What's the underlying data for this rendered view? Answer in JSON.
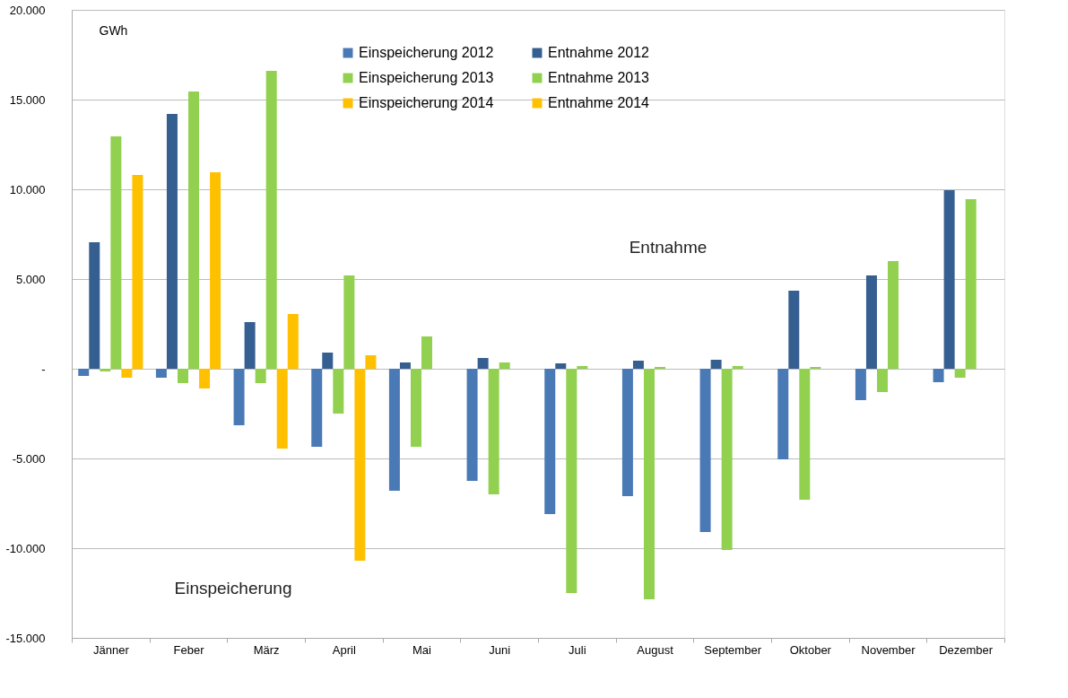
{
  "chart_data": {
    "type": "bar",
    "ylabel": "GWh",
    "categories": [
      "Jänner",
      "Feber",
      "März",
      "April",
      "Mai",
      "Juni",
      "Juli",
      "August",
      "September",
      "Oktober",
      "November",
      "Dezember"
    ],
    "series": [
      {
        "name": "Einspeicherung 2012",
        "color": "#4a7ab5",
        "values": [
          -400,
          -500,
          -3150,
          -4350,
          -6800,
          -6250,
          -8100,
          -7100,
          -9100,
          -5050,
          -1750,
          -750
        ]
      },
      {
        "name": "Entnahme 2012",
        "color": "#365f91",
        "values": [
          7050,
          14200,
          2600,
          900,
          350,
          600,
          300,
          450,
          500,
          4350,
          5200,
          9950
        ]
      },
      {
        "name": "Einspeicherung 2013",
        "color": "#92d050",
        "values": [
          -150,
          -800,
          -800,
          -2500,
          -4350,
          -7000,
          -12500,
          -12850,
          -10100,
          -7300,
          -1300,
          -500
        ]
      },
      {
        "name": "Entnahme 2013",
        "color": "#92d050",
        "values": [
          12950,
          15450,
          16600,
          5200,
          1800,
          350,
          150,
          100,
          150,
          100,
          6000,
          9450
        ]
      },
      {
        "name": "Einspeicherung 2014",
        "color": "#ffc000",
        "values": [
          -500,
          -1100,
          -4450,
          -10700,
          null,
          null,
          null,
          null,
          null,
          null,
          null,
          null
        ]
      },
      {
        "name": "Entnahme 2014",
        "color": "#ffc000",
        "values": [
          10800,
          10950,
          3050,
          750,
          null,
          null,
          null,
          null,
          null,
          null,
          null,
          null
        ]
      }
    ],
    "ylim": [
      -15000,
      20000
    ],
    "yticks": [
      {
        "value": -15000,
        "label": "-15.000"
      },
      {
        "value": -10000,
        "label": "-10.000"
      },
      {
        "value": -5000,
        "label": "-5.000"
      },
      {
        "value": 0,
        "label": "-"
      },
      {
        "value": 5000,
        "label": "5.000"
      },
      {
        "value": 10000,
        "label": "10.000"
      },
      {
        "value": 15000,
        "label": "15.000"
      },
      {
        "value": 20000,
        "label": "20.000"
      }
    ],
    "grid": "y",
    "legend": "top",
    "annotations": [
      "Entnahme",
      "Einspeicherung"
    ]
  }
}
